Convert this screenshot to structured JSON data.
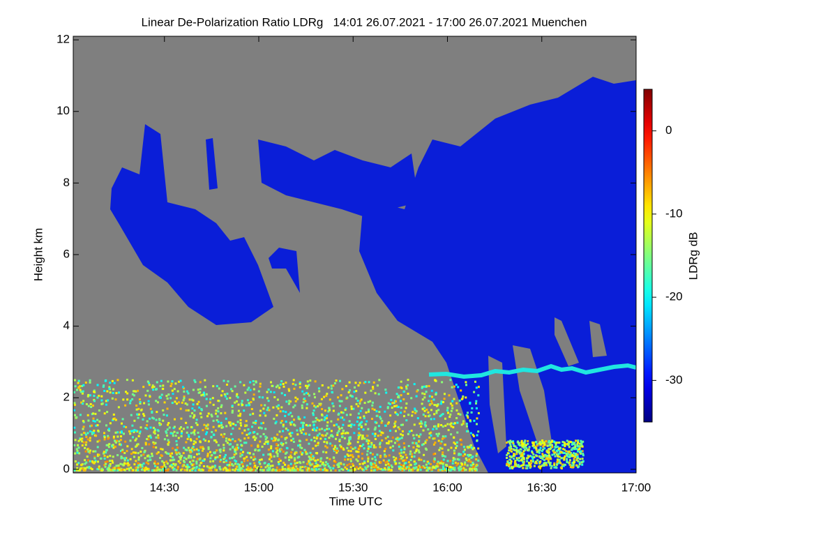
{
  "chart_data": {
    "type": "heatmap",
    "title": "Linear De-Polarization Ratio LDRg   14:01 26.07.2021 - 17:00 26.07.2021 Muenchen",
    "x_label": "Time UTC",
    "y_label": "Height km",
    "xlim": [
      841,
      1020
    ],
    "xticks": [
      {
        "value": 870,
        "label": "14:30"
      },
      {
        "value": 900,
        "label": "15:00"
      },
      {
        "value": 930,
        "label": "15:30"
      },
      {
        "value": 960,
        "label": "16:00"
      },
      {
        "value": 990,
        "label": "16:30"
      },
      {
        "value": 1020,
        "label": "17:00"
      }
    ],
    "ylim": [
      -0.1,
      12.1
    ],
    "yticks": [
      0,
      2,
      4,
      6,
      8,
      10,
      12
    ],
    "colorbar": {
      "label": "LDRg dB",
      "clim": [
        -35,
        5
      ],
      "ticks": [
        0,
        -10,
        -20,
        -30
      ],
      "colormap": "jet"
    }
  }
}
